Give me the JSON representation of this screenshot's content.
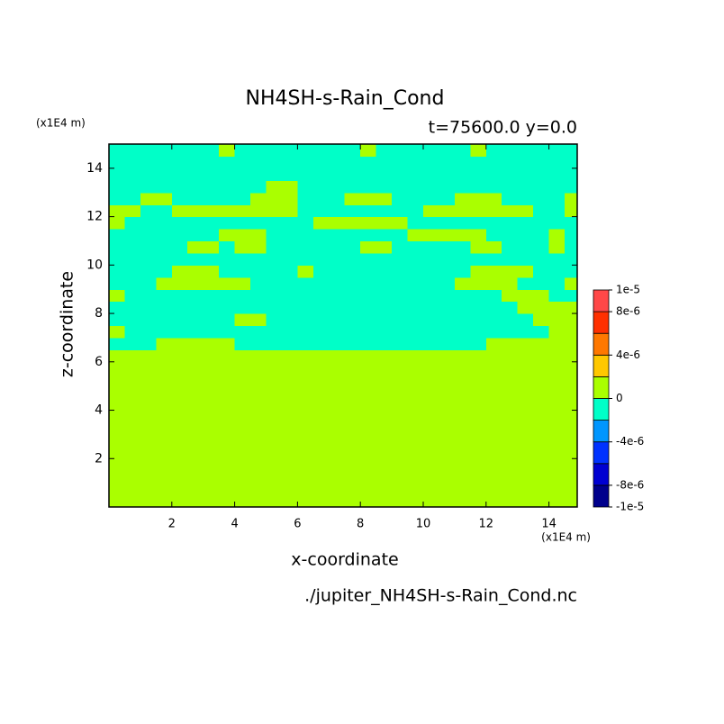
{
  "chart_data": {
    "type": "contour",
    "title": "NH4SH-s-Rain_Cond",
    "subtitle": "t=75600.0 y=0.0",
    "xlabel": "x-coordinate",
    "ylabel": "z-coordinate",
    "xunit": "(x1E4 m)",
    "yunit": "(x1E4 m)",
    "footer": "./jupiter_NH4SH-s-Rain_Cond.nc",
    "xlim": [
      0,
      14.9
    ],
    "ylim": [
      0,
      15
    ],
    "xticks": [
      2,
      4,
      6,
      8,
      10,
      12,
      14
    ],
    "yticks": [
      2,
      4,
      6,
      8,
      10,
      12,
      14
    ],
    "levels": [
      -1e-05,
      -8e-06,
      -6e-06,
      -4e-06,
      -2e-06,
      0,
      2e-06,
      4e-06,
      6e-06,
      8e-06,
      1e-05
    ],
    "colors": [
      "#00008c",
      "#0000d2",
      "#0032ff",
      "#0096ff",
      "#00ffc8",
      "#aaff00",
      "#ffc800",
      "#ff7800",
      "#ff3000",
      "#ff4848"
    ],
    "colorbar_ticks": [
      {
        "value": 1e-05,
        "label": "1e-5"
      },
      {
        "value": 8e-06,
        "label": "8e-6"
      },
      {
        "value": 4e-06,
        "label": "4e-6"
      },
      0,
      {
        "value": -4e-06,
        "label": "-4e-6"
      },
      {
        "value": -8e-06,
        "label": "-8e-6"
      },
      {
        "value": -1e-05,
        "label": "-1e-5"
      }
    ],
    "x": [
      0.25,
      0.75,
      1.25,
      1.75,
      2.25,
      2.75,
      3.25,
      3.75,
      4.25,
      4.75,
      5.25,
      5.75,
      6.25,
      6.75,
      7.25,
      7.75,
      8.25,
      8.75,
      9.25,
      9.75,
      10.25,
      10.75,
      11.25,
      11.75,
      12.25,
      12.75,
      13.25,
      13.75,
      14.25,
      14.75
    ],
    "y": [
      0.25,
      0.75,
      1.25,
      1.75,
      2.25,
      2.75,
      3.25,
      3.75,
      4.25,
      4.75,
      5.25,
      5.75,
      6.25,
      6.75,
      7.25,
      7.75,
      8.25,
      8.75,
      9.25,
      9.75,
      10.25,
      10.75,
      11.25,
      11.75,
      12.25,
      12.75,
      13.25,
      13.75,
      14.25,
      14.75
    ],
    "z": [
      [
        1e-06,
        1e-06,
        1e-06,
        1e-06,
        1e-06,
        1e-06,
        1e-06,
        1e-06,
        1e-06,
        1e-06,
        1e-06,
        1e-06,
        1e-06,
        1e-06,
        1e-06,
        1e-06,
        1e-06,
        1e-06,
        1e-06,
        1e-06,
        1e-06,
        1e-06,
        1e-06,
        1e-06,
        1e-06,
        1e-06,
        1e-06,
        1e-06,
        1e-06,
        1e-06
      ],
      [
        1e-06,
        1e-06,
        1e-06,
        1e-06,
        1e-06,
        1e-06,
        1e-06,
        1e-06,
        1e-06,
        1e-06,
        1e-06,
        1e-06,
        1e-06,
        1e-06,
        1e-06,
        1e-06,
        1e-06,
        1e-06,
        1e-06,
        1e-06,
        1e-06,
        1e-06,
        1e-06,
        1e-06,
        1e-06,
        1e-06,
        1e-06,
        1e-06,
        1e-06,
        1e-06
      ],
      [
        1e-06,
        1e-06,
        1e-06,
        1e-06,
        1e-06,
        1e-06,
        1e-06,
        1e-06,
        1e-06,
        1e-06,
        1e-06,
        1e-06,
        1e-06,
        1e-06,
        1e-06,
        1e-06,
        1e-06,
        1e-06,
        1e-06,
        1e-06,
        1e-06,
        1e-06,
        1e-06,
        1e-06,
        1e-06,
        1e-06,
        1e-06,
        1e-06,
        1e-06,
        1e-06
      ],
      [
        1e-06,
        1e-06,
        1e-06,
        1e-06,
        1e-06,
        1e-06,
        1e-06,
        1e-06,
        1e-06,
        1e-06,
        1e-06,
        1e-06,
        1e-06,
        1e-06,
        1e-06,
        1e-06,
        1e-06,
        1e-06,
        1e-06,
        1e-06,
        1e-06,
        1e-06,
        1e-06,
        1e-06,
        1e-06,
        1e-06,
        1e-06,
        1e-06,
        1e-06,
        1e-06
      ],
      [
        1e-06,
        1e-06,
        1e-06,
        1e-06,
        1e-06,
        1e-06,
        1e-06,
        1e-06,
        1e-06,
        1e-06,
        1e-06,
        1e-06,
        1e-06,
        1e-06,
        1e-06,
        1e-06,
        1e-06,
        1e-06,
        1e-06,
        1e-06,
        1e-06,
        1e-06,
        1e-06,
        1e-06,
        1e-06,
        1e-06,
        1e-06,
        1e-06,
        1e-06,
        1e-06
      ],
      [
        1e-06,
        1e-06,
        1e-06,
        1e-06,
        1e-06,
        1e-06,
        1e-06,
        1e-06,
        1e-06,
        1e-06,
        1e-06,
        1e-06,
        1e-06,
        1e-06,
        1e-06,
        1e-06,
        1e-06,
        1e-06,
        1e-06,
        1e-06,
        1e-06,
        1e-06,
        1e-06,
        1e-06,
        1e-06,
        1e-06,
        1e-06,
        1e-06,
        1e-06,
        1e-06
      ],
      [
        1e-06,
        1e-06,
        1e-06,
        1e-06,
        1e-06,
        1e-06,
        1e-06,
        1e-06,
        1e-06,
        1e-06,
        1e-06,
        1e-06,
        1e-06,
        1e-06,
        1e-06,
        1e-06,
        1e-06,
        1e-06,
        1e-06,
        1e-06,
        1e-06,
        1e-06,
        1e-06,
        1e-06,
        1e-06,
        1e-06,
        1e-06,
        1e-06,
        1e-06,
        1e-06
      ],
      [
        1e-06,
        1e-06,
        1e-06,
        1e-06,
        1e-06,
        1e-06,
        1e-06,
        1e-06,
        1e-06,
        1e-06,
        1e-06,
        1e-06,
        1e-06,
        1e-06,
        1e-06,
        1e-06,
        1e-06,
        1e-06,
        1e-06,
        1e-06,
        1e-06,
        1e-06,
        1e-06,
        1e-06,
        1e-06,
        1e-06,
        1e-06,
        1e-06,
        1e-06,
        1e-06
      ],
      [
        1e-06,
        1e-06,
        1e-06,
        1e-06,
        1e-06,
        1e-06,
        1e-06,
        1e-06,
        1e-06,
        1e-06,
        1e-06,
        1e-06,
        1e-06,
        1e-06,
        1e-06,
        1e-06,
        1e-06,
        1e-06,
        1e-06,
        1e-06,
        1e-06,
        1e-06,
        1e-06,
        1e-06,
        1e-06,
        1e-06,
        1e-06,
        1e-06,
        1e-06,
        1e-06
      ],
      [
        1e-06,
        1e-06,
        1e-06,
        1e-06,
        1e-06,
        1e-06,
        1e-06,
        1e-06,
        1e-06,
        1e-06,
        1e-06,
        1e-06,
        1e-06,
        1e-06,
        1e-06,
        1e-06,
        1e-06,
        1e-06,
        1e-06,
        1e-06,
        1e-06,
        1e-06,
        1e-06,
        1e-06,
        1e-06,
        1e-06,
        1e-06,
        1e-06,
        1e-06,
        1e-06
      ],
      [
        1e-06,
        1e-06,
        1e-06,
        1e-06,
        1e-06,
        1e-06,
        1e-06,
        1e-06,
        1e-06,
        1e-06,
        1e-06,
        1e-06,
        1e-06,
        1e-06,
        1e-06,
        1e-06,
        1e-06,
        1e-06,
        1e-06,
        1e-06,
        1e-06,
        1e-06,
        1e-06,
        1e-06,
        1e-06,
        1e-06,
        1e-06,
        1e-06,
        1e-06,
        1e-06
      ],
      [
        1e-06,
        1e-06,
        1e-06,
        1e-06,
        1e-06,
        1e-06,
        1e-06,
        1e-06,
        1e-06,
        1e-06,
        1e-06,
        1e-06,
        1e-06,
        1e-06,
        1e-06,
        1e-06,
        1e-06,
        1e-06,
        1e-06,
        1e-06,
        1e-06,
        1e-06,
        1e-06,
        1e-06,
        1e-06,
        1e-06,
        1e-06,
        1e-06,
        1e-06,
        1e-06
      ],
      [
        1e-06,
        1e-06,
        1e-06,
        1e-06,
        1e-06,
        1e-06,
        1e-06,
        1e-06,
        1e-06,
        1e-06,
        1e-06,
        1e-06,
        1e-06,
        1e-06,
        1e-06,
        1e-06,
        1e-06,
        1e-06,
        1e-06,
        1e-06,
        1e-06,
        1e-06,
        1e-06,
        1e-06,
        1e-06,
        1e-06,
        1e-06,
        1e-06,
        1e-06,
        1e-06
      ],
      [
        -1e-06,
        -1e-06,
        -1e-06,
        1e-06,
        1e-06,
        1e-06,
        1e-06,
        1e-06,
        -1e-06,
        -1e-06,
        -1e-06,
        -1e-06,
        -1e-06,
        -1e-06,
        -1e-06,
        -1e-06,
        -1e-06,
        -1e-06,
        -1e-06,
        -1e-06,
        -1e-06,
        -1e-06,
        -1e-06,
        -1e-06,
        1e-06,
        1e-06,
        1e-06,
        1e-06,
        1e-06,
        1e-06
      ],
      [
        1e-06,
        -1e-06,
        -1e-06,
        -1e-06,
        -1e-06,
        -1e-06,
        -1e-06,
        -1e-06,
        -1e-06,
        -1e-06,
        -1e-06,
        -1e-06,
        -1e-06,
        -1e-06,
        -1e-06,
        -1e-06,
        -1e-06,
        -1e-06,
        -1e-06,
        -1e-06,
        -1e-06,
        -1e-06,
        -1e-06,
        -1e-06,
        -1e-06,
        -1e-06,
        -1e-06,
        -1e-06,
        1e-06,
        1e-06
      ],
      [
        -1e-06,
        -1e-06,
        -1e-06,
        -1e-06,
        -1e-06,
        -1e-06,
        -1e-06,
        -1e-06,
        1e-06,
        1e-06,
        -1e-06,
        -1e-06,
        -1e-06,
        -1e-06,
        -1e-06,
        -1e-06,
        -1e-06,
        -1e-06,
        -1e-06,
        -1e-06,
        -1e-06,
        -1e-06,
        -1e-06,
        -1e-06,
        -1e-06,
        -1e-06,
        -1e-06,
        1e-06,
        1e-06,
        1e-06
      ],
      [
        -1e-06,
        -1e-06,
        -1e-06,
        -1e-06,
        -1e-06,
        -1e-06,
        -1e-06,
        -1e-06,
        -1e-06,
        -1e-06,
        -1e-06,
        -1e-06,
        -1e-06,
        -1e-06,
        -1e-06,
        -1e-06,
        -1e-06,
        -1e-06,
        -1e-06,
        -1e-06,
        -1e-06,
        -1e-06,
        -1e-06,
        -1e-06,
        -1e-06,
        -1e-06,
        1e-06,
        1e-06,
        1e-06,
        1e-06
      ],
      [
        1e-06,
        -1e-06,
        -1e-06,
        -1e-06,
        -1e-06,
        -1e-06,
        -1e-06,
        -1e-06,
        -1e-06,
        -1e-06,
        -1e-06,
        -1e-06,
        -1e-06,
        -1e-06,
        -1e-06,
        -1e-06,
        -1e-06,
        -1e-06,
        -1e-06,
        -1e-06,
        -1e-06,
        -1e-06,
        -1e-06,
        -1e-06,
        -1e-06,
        1e-06,
        1e-06,
        1e-06,
        -1e-06,
        -1e-06
      ],
      [
        -1e-06,
        -1e-06,
        -1e-06,
        1e-06,
        1e-06,
        1e-06,
        1e-06,
        1e-06,
        1e-06,
        -1e-06,
        -1e-06,
        -1e-06,
        -1e-06,
        -1e-06,
        -1e-06,
        -1e-06,
        -1e-06,
        -1e-06,
        -1e-06,
        -1e-06,
        -1e-06,
        -1e-06,
        1e-06,
        1e-06,
        1e-06,
        1e-06,
        -1e-06,
        -1e-06,
        -1e-06,
        1e-06
      ],
      [
        -1e-06,
        -1e-06,
        -1e-06,
        -1e-06,
        1e-06,
        1e-06,
        1e-06,
        -1e-06,
        -1e-06,
        -1e-06,
        -1e-06,
        -1e-06,
        1e-06,
        -1e-06,
        -1e-06,
        -1e-06,
        -1e-06,
        -1e-06,
        -1e-06,
        -1e-06,
        -1e-06,
        -1e-06,
        -1e-06,
        1e-06,
        1e-06,
        1e-06,
        1e-06,
        -1e-06,
        -1e-06,
        -1e-06
      ],
      [
        -1e-06,
        -1e-06,
        -1e-06,
        -1e-06,
        -1e-06,
        -1e-06,
        -1e-06,
        -1e-06,
        -1e-06,
        -1e-06,
        -1e-06,
        -1e-06,
        -1e-06,
        -1e-06,
        -1e-06,
        -1e-06,
        -1e-06,
        -1e-06,
        -1e-06,
        -1e-06,
        -1e-06,
        -1e-06,
        -1e-06,
        -1e-06,
        -1e-06,
        -1e-06,
        -1e-06,
        -1e-06,
        -1e-06,
        -1e-06
      ],
      [
        -1e-06,
        -1e-06,
        -1e-06,
        -1e-06,
        -1e-06,
        1e-06,
        1e-06,
        -1e-06,
        1e-06,
        1e-06,
        -1e-06,
        -1e-06,
        -1e-06,
        -1e-06,
        -1e-06,
        -1e-06,
        1e-06,
        1e-06,
        -1e-06,
        -1e-06,
        -1e-06,
        -1e-06,
        -1e-06,
        1e-06,
        1e-06,
        -1e-06,
        -1e-06,
        -1e-06,
        1e-06,
        -1e-06
      ],
      [
        -1e-06,
        -1e-06,
        -1e-06,
        -1e-06,
        -1e-06,
        -1e-06,
        -1e-06,
        1e-06,
        1e-06,
        1e-06,
        -1e-06,
        -1e-06,
        -1e-06,
        -1e-06,
        -1e-06,
        -1e-06,
        -1e-06,
        -1e-06,
        -1e-06,
        1e-06,
        1e-06,
        1e-06,
        1e-06,
        1e-06,
        -1e-06,
        -1e-06,
        -1e-06,
        -1e-06,
        1e-06,
        -1e-06
      ],
      [
        1e-06,
        -1e-06,
        -1e-06,
        -1e-06,
        -1e-06,
        -1e-06,
        -1e-06,
        -1e-06,
        -1e-06,
        -1e-06,
        -1e-06,
        -1e-06,
        -1e-06,
        1e-06,
        1e-06,
        1e-06,
        1e-06,
        1e-06,
        1e-06,
        -1e-06,
        -1e-06,
        -1e-06,
        -1e-06,
        -1e-06,
        -1e-06,
        -1e-06,
        -1e-06,
        -1e-06,
        -1e-06,
        -1e-06
      ],
      [
        1e-06,
        1e-06,
        -1e-06,
        -1e-06,
        1e-06,
        1e-06,
        1e-06,
        1e-06,
        1e-06,
        1e-06,
        1e-06,
        1e-06,
        -1e-06,
        -1e-06,
        -1e-06,
        -1e-06,
        -1e-06,
        -1e-06,
        -1e-06,
        -1e-06,
        1e-06,
        1e-06,
        1e-06,
        1e-06,
        1e-06,
        1e-06,
        1e-06,
        -1e-06,
        -1e-06,
        1e-06
      ],
      [
        -1e-06,
        -1e-06,
        1e-06,
        1e-06,
        -1e-06,
        -1e-06,
        -1e-06,
        -1e-06,
        -1e-06,
        1e-06,
        1e-06,
        1e-06,
        -1e-06,
        -1e-06,
        -1e-06,
        1e-06,
        1e-06,
        1e-06,
        -1e-06,
        -1e-06,
        -1e-06,
        -1e-06,
        1e-06,
        1e-06,
        1e-06,
        -1e-06,
        -1e-06,
        -1e-06,
        -1e-06,
        1e-06
      ],
      [
        -1e-06,
        -1e-06,
        -1e-06,
        -1e-06,
        -1e-06,
        -1e-06,
        -1e-06,
        -1e-06,
        -1e-06,
        -1e-06,
        1e-06,
        1e-06,
        -1e-06,
        -1e-06,
        -1e-06,
        -1e-06,
        -1e-06,
        -1e-06,
        -1e-06,
        -1e-06,
        -1e-06,
        -1e-06,
        -1e-06,
        -1e-06,
        -1e-06,
        -1e-06,
        -1e-06,
        -1e-06,
        -1e-06,
        -1e-06
      ],
      [
        -1e-06,
        -1e-06,
        -1e-06,
        -1e-06,
        -1e-06,
        -1e-06,
        -1e-06,
        -1e-06,
        -1e-06,
        -1e-06,
        -1e-06,
        -1e-06,
        -1e-06,
        -1e-06,
        -1e-06,
        -1e-06,
        -1e-06,
        -1e-06,
        -1e-06,
        -1e-06,
        -1e-06,
        -1e-06,
        -1e-06,
        -1e-06,
        -1e-06,
        -1e-06,
        -1e-06,
        -1e-06,
        -1e-06,
        -1e-06
      ],
      [
        -1e-06,
        -1e-06,
        -1e-06,
        -1e-06,
        -1e-06,
        -1e-06,
        -1e-06,
        -1e-06,
        -1e-06,
        -1e-06,
        -1e-06,
        -1e-06,
        -1e-06,
        -1e-06,
        -1e-06,
        -1e-06,
        -1e-06,
        -1e-06,
        -1e-06,
        -1e-06,
        -1e-06,
        -1e-06,
        -1e-06,
        -1e-06,
        -1e-06,
        -1e-06,
        -1e-06,
        -1e-06,
        -1e-06,
        -1e-06
      ],
      [
        -1e-06,
        -1e-06,
        -1e-06,
        -1e-06,
        -1e-06,
        -1e-06,
        -1e-06,
        1e-06,
        -1e-06,
        -1e-06,
        -1e-06,
        -1e-06,
        -1e-06,
        -1e-06,
        -1e-06,
        -1e-06,
        1e-06,
        -1e-06,
        -1e-06,
        -1e-06,
        -1e-06,
        -1e-06,
        -1e-06,
        1e-06,
        -1e-06,
        -1e-06,
        -1e-06,
        -1e-06,
        -1e-06,
        -1e-06
      ]
    ]
  }
}
